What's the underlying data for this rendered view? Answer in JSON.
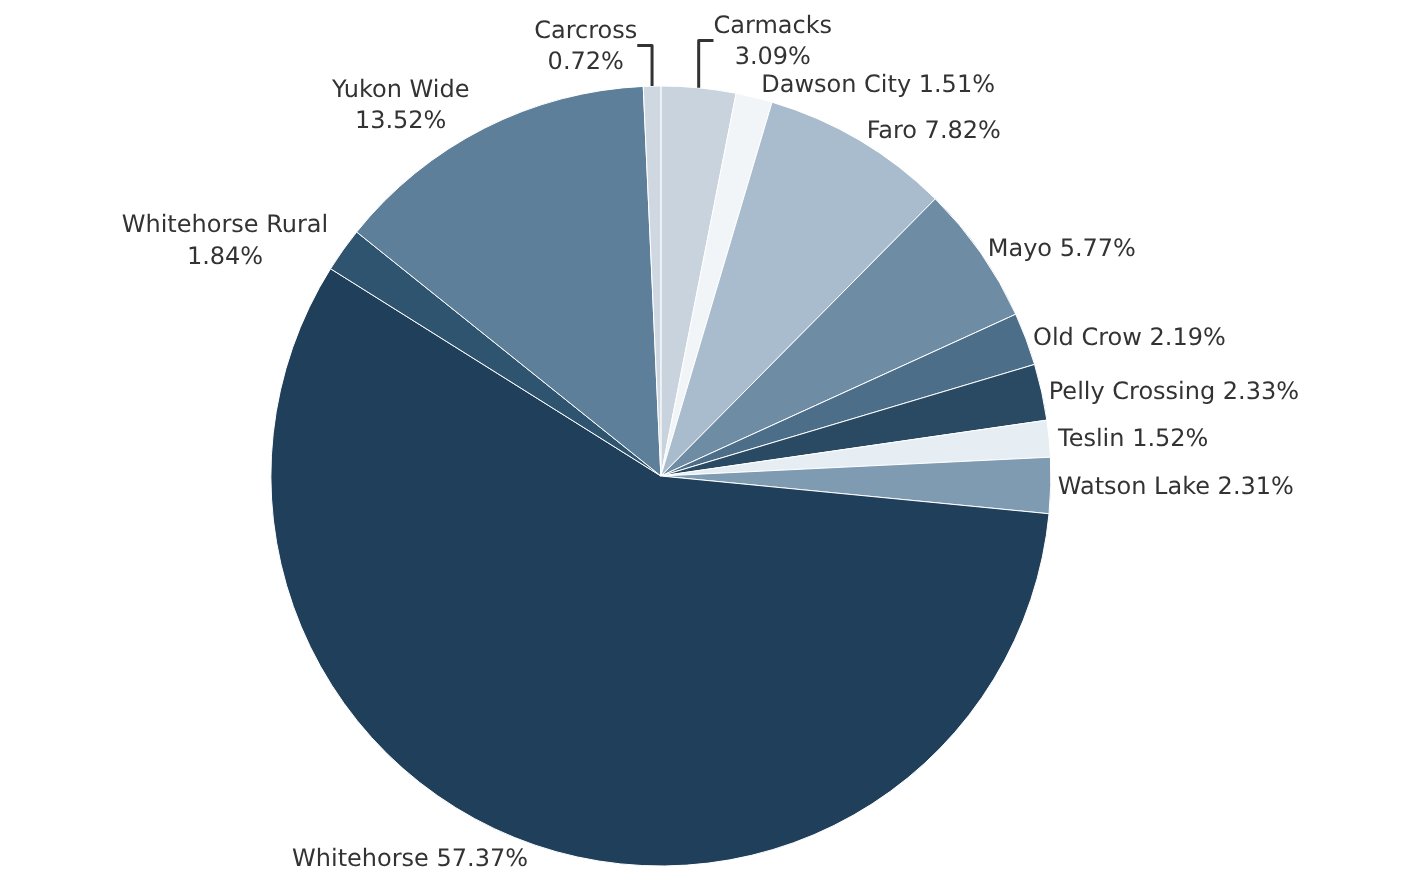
{
  "chart_data": {
    "type": "pie",
    "categories": [
      "Carmacks",
      "Dawson City",
      "Faro",
      "Mayo",
      "Old Crow",
      "Pelly Crossing",
      "Teslin",
      "Watson Lake",
      "Whitehorse",
      "Whitehorse Rural",
      "Yukon Wide",
      "Carcross"
    ],
    "values": [
      3.09,
      1.51,
      7.82,
      5.77,
      2.19,
      2.33,
      1.52,
      2.31,
      57.37,
      1.84,
      13.52,
      0.72
    ],
    "value_labels": [
      "3.09%",
      "1.51%",
      "7.82%",
      "5.77%",
      "2.19%",
      "2.33%",
      "1.52%",
      "2.31%",
      "57.37%",
      "1.84%",
      "13.52%",
      "0.72%"
    ],
    "colors": [
      "#c8d3de",
      "#f2f5f8",
      "#a8bccd",
      "#6f8ca5",
      "#4d6e88",
      "#2a4a64",
      "#e6edf3",
      "#7f9bb2",
      "#1f3f5a",
      "#2e5470",
      "#5e7f9a",
      "#cfd8e1"
    ],
    "legend": false
  }
}
